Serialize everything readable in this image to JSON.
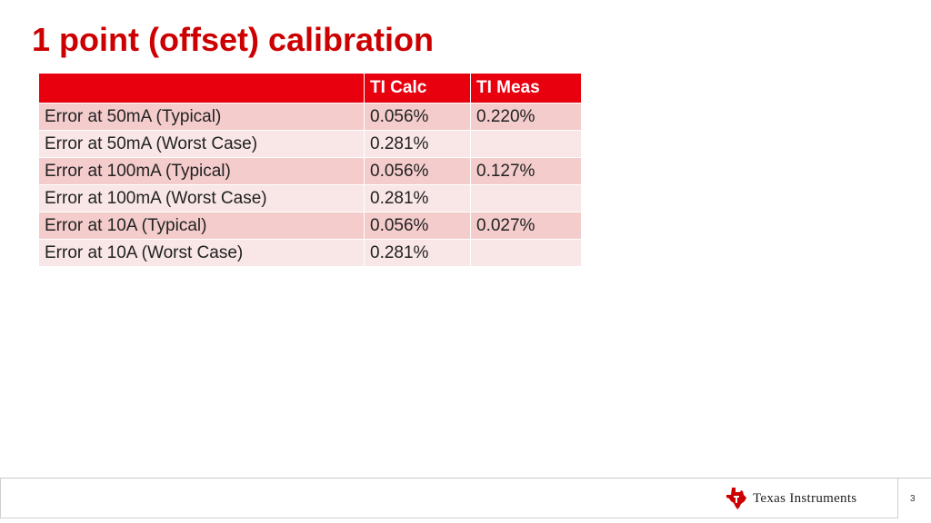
{
  "slide": {
    "title": "1 point (offset) calibration"
  },
  "table": {
    "headers": [
      "",
      "TI Calc",
      "TI Meas"
    ],
    "rows": [
      {
        "label": "Error at 50mA (Typical)",
        "calc": "0.056%",
        "meas": "0.220%"
      },
      {
        "label": "Error at 50mA (Worst Case)",
        "calc": "0.281%",
        "meas": ""
      },
      {
        "label": "Error at 100mA (Typical)",
        "calc": "0.056%",
        "meas": "0.127%"
      },
      {
        "label": "Error at 100mA (Worst Case)",
        "calc": "0.281%",
        "meas": ""
      },
      {
        "label": "Error at 10A (Typical)",
        "calc": "0.056%",
        "meas": "0.027%"
      },
      {
        "label": "Error at 10A (Worst Case)",
        "calc": "0.281%",
        "meas": ""
      }
    ]
  },
  "footer": {
    "logo_text": "Texas Instruments",
    "page_number": "3"
  },
  "colors": {
    "title": "#cc0000",
    "header_fill": "#e8000f",
    "row_odd": "#f4cccc",
    "row_even": "#f9e6e6"
  }
}
